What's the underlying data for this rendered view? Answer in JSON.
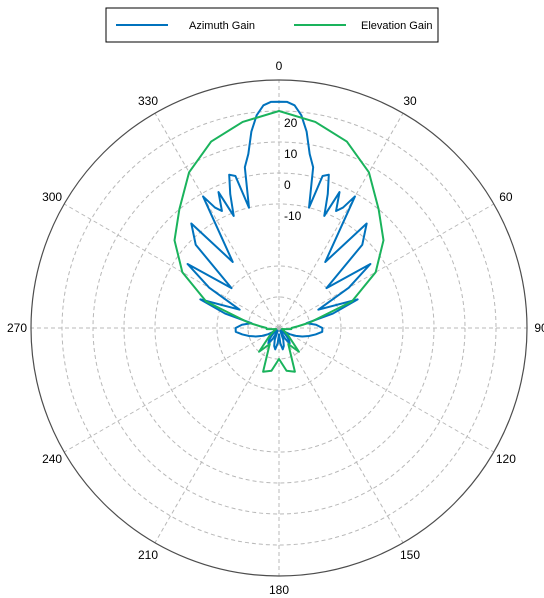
{
  "chart_data": {
    "type": "polar",
    "title": "",
    "angle_direction": "clockwise",
    "zero_location": "top",
    "angle_ticks": [
      0,
      30,
      60,
      90,
      120,
      150,
      180,
      210,
      240,
      270,
      300,
      330
    ],
    "angle_tick_labels": [
      "0",
      "30",
      "60",
      "90",
      "120",
      "150",
      "180",
      "210",
      "240",
      "270",
      "300",
      "330"
    ],
    "radial_ticks": [
      -10,
      0,
      10,
      20
    ],
    "radial_tick_labels": [
      "-10",
      "0",
      "10",
      "20"
    ],
    "rlim": [
      -50,
      30
    ],
    "grid": true,
    "legend_position": "top-center",
    "series": [
      {
        "name": "Azimuth Gain",
        "color": "#0072bd",
        "theta": [
          -180,
          -175,
          -170,
          -165,
          -160,
          -155,
          -150,
          -145,
          -140,
          -135,
          -130,
          -125,
          -120,
          -115,
          -110,
          -105,
          -100,
          -95,
          -90,
          -85,
          -80,
          -75,
          -70,
          -65,
          -60,
          -55,
          -50,
          -45,
          -40,
          -35,
          -30,
          -28,
          -26,
          -24,
          -22,
          -20,
          -18,
          -16,
          -14,
          -12,
          -10,
          -8,
          -6,
          -4,
          -2,
          0,
          2,
          4,
          6,
          8,
          10,
          12,
          14,
          16,
          18,
          20,
          22,
          24,
          26,
          28,
          30,
          35,
          40,
          45,
          50,
          55,
          60,
          65,
          70,
          75,
          80,
          85,
          90,
          95,
          100,
          105,
          110,
          115,
          120,
          125,
          130,
          135,
          140,
          145,
          150,
          155,
          160,
          165,
          170,
          175,
          180
        ],
        "r": [
          -48,
          -45,
          -43,
          -44,
          -46,
          -49,
          -46,
          -44,
          -45,
          -47,
          -49,
          -48,
          -46,
          -44,
          -42,
          -40,
          -38,
          -36,
          -36,
          -38,
          -41,
          -32,
          -23,
          -36,
          -24,
          -14,
          -30,
          -12,
          -6,
          -24,
          -1,
          -6,
          -8,
          -2,
          -11,
          -4,
          2,
          1,
          -10,
          3,
          7,
          14,
          19,
          22,
          23,
          23,
          23,
          22,
          19,
          14,
          7,
          3,
          -10,
          1,
          2,
          -4,
          -11,
          -2,
          -8,
          -6,
          -1,
          -24,
          -6,
          -12,
          -30,
          -14,
          -24,
          -36,
          -23,
          -32,
          -41,
          -38,
          -36,
          -36,
          -38,
          -40,
          -42,
          -44,
          -46,
          -48,
          -49,
          -47,
          -45,
          -44,
          -46,
          -49,
          -46,
          -44,
          -43,
          -45,
          -48
        ]
      },
      {
        "name": "Elevation Gain",
        "color": "#1ab35c",
        "theta": [
          -180,
          -170,
          -160,
          -150,
          -140,
          -130,
          -120,
          -110,
          -100,
          -95,
          -90,
          -85,
          -80,
          -70,
          -60,
          -50,
          -40,
          -30,
          -20,
          -10,
          0,
          10,
          20,
          30,
          40,
          50,
          60,
          70,
          80,
          85,
          90,
          95,
          100,
          110,
          120,
          130,
          140,
          150,
          160,
          170,
          180
        ],
        "r": [
          -40,
          -36,
          -35,
          -44,
          -40,
          -46,
          -48,
          -49,
          -48,
          -46,
          -46,
          -44,
          -40,
          -25,
          -14,
          -6,
          0,
          8,
          14,
          17.5,
          20,
          17.5,
          14,
          8,
          0,
          -6,
          -14,
          -25,
          -40,
          -44,
          -46,
          -46,
          -48,
          -49,
          -48,
          -46,
          -40,
          -44,
          -35,
          -36,
          -40
        ]
      }
    ]
  }
}
